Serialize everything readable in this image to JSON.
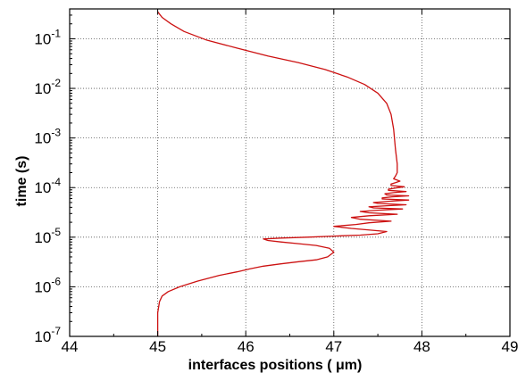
{
  "chart_data": {
    "type": "line",
    "xlabel": "interfaces positions ( μm)",
    "ylabel": "time (s)",
    "xlim": [
      44,
      49
    ],
    "ylim": [
      1e-07,
      0.4
    ],
    "y_scale": "log",
    "grid": true,
    "legend": "none",
    "x_ticks": [
      "44",
      "45",
      "46",
      "47",
      "48",
      "49"
    ],
    "y_ticks": [
      {
        "base": "10",
        "exp": "-7",
        "value": 1e-07
      },
      {
        "base": "10",
        "exp": "-6",
        "value": 1e-06
      },
      {
        "base": "10",
        "exp": "-5",
        "value": 1e-05
      },
      {
        "base": "10",
        "exp": "-4",
        "value": 0.0001
      },
      {
        "base": "10",
        "exp": "-3",
        "value": 0.001
      },
      {
        "base": "10",
        "exp": "-2",
        "value": 0.01
      },
      {
        "base": "10",
        "exp": "-1",
        "value": 0.1
      }
    ],
    "line_color": "#cc1111",
    "series": [
      {
        "x": [
          45.0,
          45.0,
          45.02,
          45.05,
          45.12,
          45.25,
          45.45,
          45.7,
          45.9,
          46.05,
          46.2,
          46.4,
          46.6,
          46.8,
          46.93,
          47.0,
          46.95,
          46.8,
          46.6,
          46.4,
          46.25,
          46.2,
          46.4,
          46.7,
          47.0,
          47.3,
          47.5,
          47.6,
          47.2,
          47.0,
          47.25,
          47.4,
          47.65,
          47.3,
          47.2,
          47.4,
          47.72,
          47.4,
          47.3,
          47.5,
          47.78,
          47.45,
          47.4,
          47.6,
          47.82,
          47.5,
          47.45,
          47.62,
          47.85,
          47.55,
          47.55,
          47.66,
          47.85,
          47.6,
          47.58,
          47.68,
          47.82,
          47.62,
          47.62,
          47.7,
          47.8,
          47.65,
          47.65,
          47.7,
          47.75,
          47.68,
          47.7,
          47.72,
          47.72,
          47.7,
          47.68,
          47.65,
          47.6,
          47.5,
          47.35,
          47.15,
          46.9,
          46.6,
          46.25,
          45.9,
          45.55,
          45.3,
          45.15,
          45.05,
          45.0
        ],
        "y": [
          1e-07,
          3e-07,
          5e-07,
          6.5e-07,
          8e-07,
          1e-06,
          1.3e-06,
          1.7e-06,
          2e-06,
          2.3e-06,
          2.6e-06,
          2.9e-06,
          3.2e-06,
          3.5e-06,
          4e-06,
          5e-06,
          6e-06,
          6.8e-06,
          7.4e-06,
          8e-06,
          8.6e-06,
          9.2e-06,
          9.6e-06,
          1e-05,
          1.05e-05,
          1.1e-05,
          1.17e-05,
          1.3e-05,
          1.5e-05,
          1.65e-05,
          1.8e-05,
          1.95e-05,
          2.1e-05,
          2.3e-05,
          2.5e-05,
          2.7e-05,
          2.9e-05,
          3.1e-05,
          3.3e-05,
          3.5e-05,
          3.7e-05,
          3.9e-05,
          4.1e-05,
          4.3e-05,
          4.5e-05,
          4.8e-05,
          5e-05,
          5.3e-05,
          5.6e-05,
          5.9e-05,
          6.2e-05,
          6.5e-05,
          6.8e-05,
          7.1e-05,
          7.5e-05,
          7.9e-05,
          8.3e-05,
          8.8e-05,
          9.3e-05,
          9.8e-05,
          0.000104,
          0.00011,
          0.000118,
          0.000126,
          0.000135,
          0.00015,
          0.00017,
          0.0002,
          0.0003,
          0.0006,
          0.0015,
          0.003,
          0.005,
          0.008,
          0.012,
          0.017,
          0.024,
          0.033,
          0.045,
          0.065,
          0.095,
          0.14,
          0.2,
          0.27,
          0.35
        ]
      }
    ]
  }
}
